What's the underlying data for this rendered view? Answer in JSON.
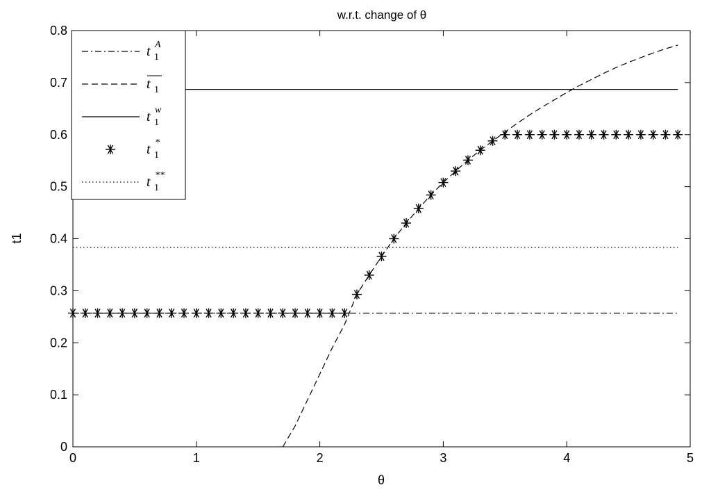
{
  "chart_data": {
    "type": "line",
    "title": "w.r.t. change of θ",
    "xlabel": "θ",
    "ylabel": "t1",
    "xlim": [
      0,
      5
    ],
    "ylim": [
      0,
      0.8
    ],
    "xticks": [
      "0",
      "1",
      "2",
      "3",
      "4",
      "5"
    ],
    "yticks": [
      "0",
      "0.1",
      "0.2",
      "0.3",
      "0.4",
      "0.5",
      "0.6",
      "0.7",
      "0.8"
    ],
    "grid": false,
    "legend_position": "top-left",
    "series": [
      {
        "name": "t1A",
        "legend_base": "t",
        "legend_sub": "1",
        "legend_sup": "A",
        "style": "dashdot",
        "color": "#000000",
        "x": [
          0,
          4.9
        ],
        "y": [
          0.257,
          0.257
        ]
      },
      {
        "name": "t1 bar",
        "legend_base": "t",
        "legend_sub": "1",
        "legend_sup": "",
        "legend_overline": true,
        "style": "dashed",
        "color": "#000000",
        "x": [
          1.7,
          1.8,
          1.9,
          2.0,
          2.1,
          2.2,
          2.3,
          2.4,
          2.5,
          2.6,
          2.7,
          2.8,
          2.9,
          3.0,
          3.1,
          3.2,
          3.3,
          3.4,
          3.5,
          3.6,
          3.7,
          3.8,
          3.9,
          4.0,
          4.1,
          4.2,
          4.3,
          4.4,
          4.5,
          4.6,
          4.7,
          4.8,
          4.9
        ],
        "y": [
          0.0,
          0.04,
          0.09,
          0.14,
          0.19,
          0.235,
          0.293,
          0.33,
          0.366,
          0.4,
          0.43,
          0.458,
          0.484,
          0.508,
          0.53,
          0.551,
          0.57,
          0.588,
          0.605,
          0.622,
          0.638,
          0.653,
          0.667,
          0.681,
          0.694,
          0.706,
          0.718,
          0.729,
          0.739,
          0.748,
          0.757,
          0.765,
          0.772
        ]
      },
      {
        "name": "t1w",
        "legend_base": "t",
        "legend_sub": "1",
        "legend_sup": "w",
        "style": "solid",
        "color": "#000000",
        "x": [
          0,
          4.9
        ],
        "y": [
          0.687,
          0.687
        ]
      },
      {
        "name": "t1*",
        "legend_base": "t",
        "legend_sub": "1",
        "legend_sup": "*",
        "style": "markers",
        "marker": "*",
        "color": "#000000",
        "x": [
          0.0,
          0.1,
          0.2,
          0.3,
          0.4,
          0.5,
          0.6,
          0.7,
          0.8,
          0.9,
          1.0,
          1.1,
          1.2,
          1.3,
          1.4,
          1.5,
          1.6,
          1.7,
          1.8,
          1.9,
          2.0,
          2.1,
          2.2,
          2.3,
          2.4,
          2.5,
          2.6,
          2.7,
          2.8,
          2.9,
          3.0,
          3.1,
          3.2,
          3.3,
          3.4,
          3.5,
          3.6,
          3.7,
          3.8,
          3.9,
          4.0,
          4.1,
          4.2,
          4.3,
          4.4,
          4.5,
          4.6,
          4.7,
          4.8,
          4.9
        ],
        "y": [
          0.257,
          0.257,
          0.257,
          0.257,
          0.257,
          0.257,
          0.257,
          0.257,
          0.257,
          0.257,
          0.257,
          0.257,
          0.257,
          0.257,
          0.257,
          0.257,
          0.257,
          0.257,
          0.257,
          0.257,
          0.257,
          0.257,
          0.257,
          0.293,
          0.33,
          0.366,
          0.4,
          0.43,
          0.458,
          0.484,
          0.508,
          0.53,
          0.551,
          0.57,
          0.588,
          0.6,
          0.6,
          0.6,
          0.6,
          0.6,
          0.6,
          0.6,
          0.6,
          0.6,
          0.6,
          0.6,
          0.6,
          0.6,
          0.6,
          0.6
        ]
      },
      {
        "name": "t1**",
        "legend_base": "t",
        "legend_sub": "1",
        "legend_sup": "**",
        "style": "dotted",
        "color": "#000000",
        "x": [
          0,
          4.9
        ],
        "y": [
          0.383,
          0.383
        ]
      }
    ]
  }
}
